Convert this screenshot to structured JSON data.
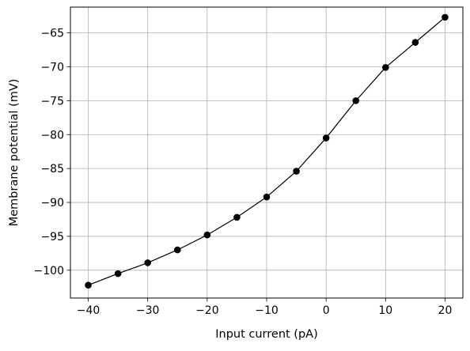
{
  "chart_data": {
    "type": "line",
    "title": "",
    "xlabel": "Input current (pA)",
    "ylabel": "Membrane potential (mV)",
    "xlim": [
      -43,
      23
    ],
    "ylim": [
      -104.1,
      -61.2
    ],
    "xticks": [
      -40,
      -30,
      -20,
      -10,
      0,
      10,
      20
    ],
    "xtick_labels": [
      "−40",
      "−30",
      "−20",
      "−10",
      "0",
      "10",
      "20"
    ],
    "yticks": [
      -100,
      -95,
      -90,
      -85,
      -80,
      -75,
      -70,
      -65
    ],
    "ytick_labels": [
      "−100",
      "−95",
      "−90",
      "−85",
      "−80",
      "−75",
      "−70",
      "−65"
    ],
    "grid": true,
    "legend": "none",
    "series": [
      {
        "color": "#000000",
        "marker": "circle",
        "x": [
          -40,
          -35,
          -30,
          -25,
          -20,
          -15,
          -10,
          -5,
          0,
          5,
          10,
          15,
          20
        ],
        "y": [
          -102.2,
          -100.5,
          -98.9,
          -97.0,
          -94.8,
          -92.2,
          -89.2,
          -85.4,
          -80.5,
          -75.0,
          -70.1,
          -66.4,
          -62.7
        ]
      }
    ]
  }
}
